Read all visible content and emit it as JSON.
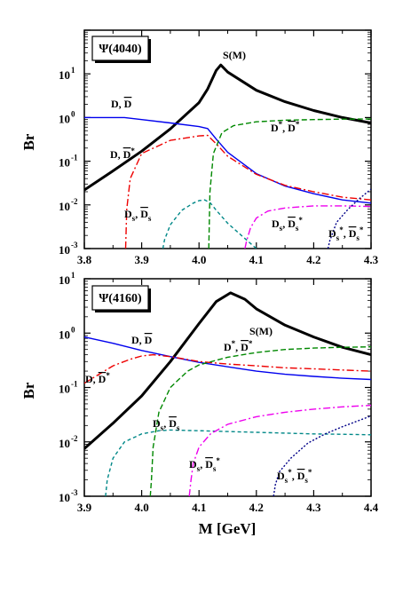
{
  "chart_data": [
    {
      "type": "line",
      "ylabel": "Br",
      "xlabel": "",
      "yscale": "log",
      "xlim": [
        3.8,
        4.3
      ],
      "ylim": [
        0.001,
        100
      ],
      "x_ticks": [
        "3.8",
        "3.9",
        "4.0",
        "4.1",
        "4.2",
        "4.3"
      ],
      "y_ticks": [
        {
          "base": "10",
          "exp": "-3"
        },
        {
          "base": "10",
          "exp": "-2"
        },
        {
          "base": "10",
          "exp": "-1"
        },
        {
          "base": "10",
          "exp": "0"
        },
        {
          "base": "10",
          "exp": "1"
        }
      ],
      "tag": "Ψ(4040)",
      "annotations": {
        "sm": "S(M)",
        "dd": "D, D̅",
        "ddstar": "D, D̅*",
        "dstardstar": "D*, D̅*",
        "dsds": "Ds, D̅s",
        "dsdsstar": "Ds, D̅s*",
        "dsstardsstar": "Ds*, D̅s*"
      },
      "series": [
        {
          "key": "sm",
          "color": "#000000",
          "dash": "",
          "x": [
            3.8,
            3.85,
            3.9,
            3.95,
            4.0,
            4.015,
            4.03,
            4.038,
            4.05,
            4.1,
            4.15,
            4.2,
            4.25,
            4.3
          ],
          "values": [
            0.022,
            0.06,
            0.17,
            0.55,
            2.2,
            4.5,
            12,
            16,
            11,
            4.2,
            2.3,
            1.45,
            1.0,
            0.75
          ]
        },
        {
          "key": "dd",
          "color": "#0000ee",
          "dash": "",
          "x": [
            3.8,
            3.87,
            3.9,
            3.95,
            4.0,
            4.015,
            4.03,
            4.05,
            4.1,
            4.15,
            4.2,
            4.25,
            4.3
          ],
          "values": [
            1.0,
            1.0,
            0.9,
            0.75,
            0.62,
            0.56,
            0.32,
            0.16,
            0.052,
            0.027,
            0.018,
            0.013,
            0.011
          ]
        },
        {
          "key": "ddstar",
          "color": "#ee0000",
          "dash": "8,3,2,3",
          "x": [
            3.872,
            3.874,
            3.88,
            3.9,
            3.95,
            4.0,
            4.015,
            4.03,
            4.05,
            4.1,
            4.15,
            4.2,
            4.25,
            4.3
          ],
          "values": [
            0.001,
            0.008,
            0.04,
            0.15,
            0.3,
            0.38,
            0.39,
            0.25,
            0.13,
            0.05,
            0.028,
            0.02,
            0.015,
            0.013
          ]
        },
        {
          "key": "dstardstar",
          "color": "#008800",
          "dash": "6,3",
          "x": [
            4.017,
            4.019,
            4.025,
            4.04,
            4.06,
            4.1,
            4.15,
            4.2,
            4.25,
            4.3
          ],
          "values": [
            0.001,
            0.02,
            0.15,
            0.45,
            0.65,
            0.8,
            0.87,
            0.9,
            0.92,
            0.93
          ]
        },
        {
          "key": "dsds",
          "color": "#008888",
          "dash": "4,3",
          "x": [
            3.937,
            3.94,
            3.95,
            3.97,
            3.99,
            4.0,
            4.01,
            4.02,
            4.03,
            4.05,
            4.08,
            4.1
          ],
          "values": [
            0.001,
            0.0016,
            0.0035,
            0.0075,
            0.011,
            0.0125,
            0.013,
            0.011,
            0.0075,
            0.0038,
            0.0017,
            0.001
          ]
        },
        {
          "key": "dsdsstar",
          "color": "#ee00ee",
          "dash": "8,3,2,3",
          "x": [
            4.08,
            4.083,
            4.09,
            4.1,
            4.12,
            4.15,
            4.2,
            4.25,
            4.3
          ],
          "values": [
            0.001,
            0.0015,
            0.003,
            0.005,
            0.0072,
            0.0085,
            0.0095,
            0.0095,
            0.0092
          ]
        },
        {
          "key": "dsstardsstar",
          "color": "#000088",
          "dash": "2,2",
          "x": [
            4.225,
            4.228,
            4.24,
            4.26,
            4.28,
            4.3
          ],
          "values": [
            0.001,
            0.0015,
            0.004,
            0.008,
            0.014,
            0.023
          ]
        }
      ]
    },
    {
      "type": "line",
      "ylabel": "Br",
      "xlabel": "M [GeV]",
      "yscale": "log",
      "xlim": [
        3.9,
        4.4
      ],
      "ylim": [
        0.001,
        10
      ],
      "x_ticks": [
        "3.9",
        "4.0",
        "4.1",
        "4.2",
        "4.3",
        "4.4"
      ],
      "y_ticks": [
        {
          "base": "10",
          "exp": "-3"
        },
        {
          "base": "10",
          "exp": "-2"
        },
        {
          "base": "10",
          "exp": "-1"
        },
        {
          "base": "10",
          "exp": "0"
        },
        {
          "base": "10",
          "exp": "1"
        }
      ],
      "tag": "Ψ(4160)",
      "annotations": {
        "sm": "S(M)",
        "dd": "D, D̅",
        "ddstar": "D, D̅*",
        "dstardstar": "D*, D̅*",
        "dsds": "Ds, D̅s",
        "dsdsstar": "Ds, D̅s*",
        "dsstardsstar": "Ds*, D̅s*"
      },
      "series": [
        {
          "key": "sm",
          "color": "#000000",
          "dash": "",
          "x": [
            3.9,
            3.95,
            4.0,
            4.05,
            4.1,
            4.13,
            4.155,
            4.18,
            4.2,
            4.25,
            4.3,
            4.35,
            4.4
          ],
          "values": [
            0.0075,
            0.022,
            0.07,
            0.3,
            1.5,
            3.8,
            5.5,
            4.2,
            2.8,
            1.4,
            0.85,
            0.55,
            0.4
          ]
        },
        {
          "key": "dd",
          "color": "#0000ee",
          "dash": "",
          "x": [
            3.9,
            3.95,
            4.0,
            4.05,
            4.1,
            4.15,
            4.2,
            4.25,
            4.3,
            4.35,
            4.4
          ],
          "values": [
            0.85,
            0.65,
            0.48,
            0.37,
            0.29,
            0.24,
            0.2,
            0.175,
            0.16,
            0.148,
            0.14
          ]
        },
        {
          "key": "ddstar",
          "color": "#ee0000",
          "dash": "8,3,2,3",
          "x": [
            3.9,
            3.95,
            3.98,
            4.0,
            4.02,
            4.05,
            4.1,
            4.15,
            4.2,
            4.25,
            4.3,
            4.35,
            4.4
          ],
          "values": [
            0.12,
            0.25,
            0.33,
            0.38,
            0.4,
            0.37,
            0.3,
            0.27,
            0.25,
            0.23,
            0.22,
            0.21,
            0.2
          ]
        },
        {
          "key": "dstardstar",
          "color": "#008800",
          "dash": "6,3",
          "x": [
            4.015,
            4.017,
            4.02,
            4.03,
            4.05,
            4.08,
            4.1,
            4.15,
            4.2,
            4.25,
            4.3,
            4.35,
            4.4
          ],
          "values": [
            0.001,
            0.002,
            0.008,
            0.035,
            0.1,
            0.2,
            0.26,
            0.36,
            0.44,
            0.5,
            0.53,
            0.55,
            0.56
          ]
        },
        {
          "key": "dsds",
          "color": "#008888",
          "dash": "4,3",
          "x": [
            3.937,
            3.94,
            3.95,
            3.97,
            4.0,
            4.03,
            4.05,
            4.1,
            4.15,
            4.2,
            4.25,
            4.3,
            4.35,
            4.4
          ],
          "values": [
            0.001,
            0.002,
            0.005,
            0.01,
            0.014,
            0.016,
            0.0165,
            0.016,
            0.0155,
            0.015,
            0.0145,
            0.014,
            0.0138,
            0.0135
          ]
        },
        {
          "key": "dsdsstar",
          "color": "#ee00ee",
          "dash": "8,3,2,3",
          "x": [
            4.083,
            4.086,
            4.09,
            4.1,
            4.12,
            4.15,
            4.2,
            4.25,
            4.3,
            4.35,
            4.4
          ],
          "values": [
            0.001,
            0.002,
            0.004,
            0.008,
            0.014,
            0.021,
            0.029,
            0.035,
            0.04,
            0.044,
            0.047
          ]
        },
        {
          "key": "dsstardsstar",
          "color": "#000088",
          "dash": "2,2",
          "x": [
            4.23,
            4.233,
            4.24,
            4.26,
            4.29,
            4.32,
            4.35,
            4.38,
            4.4
          ],
          "values": [
            0.001,
            0.0016,
            0.0028,
            0.005,
            0.0095,
            0.014,
            0.019,
            0.025,
            0.03
          ]
        }
      ]
    }
  ]
}
